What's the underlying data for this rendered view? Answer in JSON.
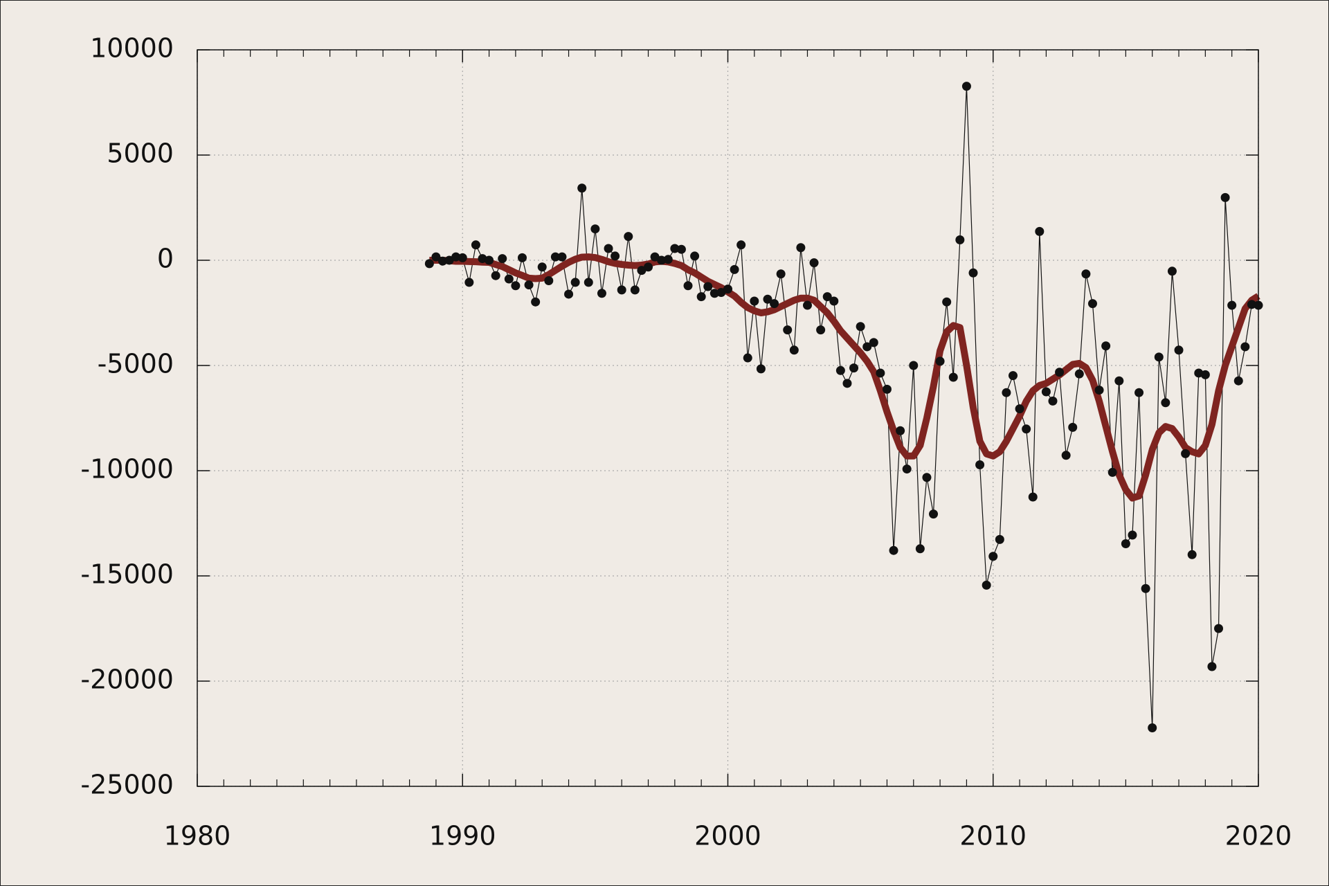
{
  "chart_data": {
    "type": "line",
    "x": [
      1988.75,
      1989,
      1989.25,
      1989.5,
      1989.75,
      1990,
      1990.25,
      1990.5,
      1990.75,
      1991,
      1991.25,
      1991.5,
      1991.75,
      1992,
      1992.25,
      1992.5,
      1992.75,
      1993,
      1993.25,
      1993.5,
      1993.75,
      1994,
      1994.25,
      1994.5,
      1994.75,
      1995,
      1995.25,
      1995.5,
      1995.75,
      1996,
      1996.25,
      1996.5,
      1996.75,
      1997,
      1997.25,
      1997.5,
      1997.75,
      1998,
      1998.25,
      1998.5,
      1998.75,
      1999,
      1999.25,
      1999.5,
      1999.75,
      2000,
      2000.25,
      2000.5,
      2000.75,
      2001,
      2001.25,
      2001.5,
      2001.75,
      2002,
      2002.25,
      2002.5,
      2002.75,
      2003,
      2003.25,
      2003.5,
      2003.75,
      2004,
      2004.25,
      2004.5,
      2004.75,
      2005,
      2005.25,
      2005.5,
      2005.75,
      2006,
      2006.25,
      2006.5,
      2006.75,
      2007,
      2007.25,
      2007.5,
      2007.75,
      2008,
      2008.25,
      2008.5,
      2008.75,
      2009,
      2009.25,
      2009.5,
      2009.75,
      2010,
      2010.25,
      2010.5,
      2010.75,
      2011,
      2011.25,
      2011.5,
      2011.75,
      2012,
      2012.25,
      2012.5,
      2012.75,
      2013,
      2013.25,
      2013.5,
      2013.75,
      2014,
      2014.25,
      2014.5,
      2014.75,
      2015,
      2015.25,
      2015.5,
      2015.75,
      2016,
      2016.25,
      2016.5,
      2016.75,
      2017,
      2017.25,
      2017.5,
      2017.75,
      2018,
      2018.25,
      2018.5,
      2018.75,
      2019,
      2019.25,
      2019.5,
      2019.75,
      2020
    ],
    "series": [
      {
        "color": "#111111",
        "line_width": 1.2,
        "markers": true,
        "values": [
          -160,
          160,
          -40,
          0,
          160,
          120,
          -1050,
          730,
          80,
          0,
          -730,
          80,
          -890,
          -1210,
          120,
          -1170,
          -1980,
          -320,
          -970,
          160,
          160,
          -1610,
          -1050,
          3430,
          -1050,
          1490,
          -1570,
          560,
          200,
          -1410,
          1130,
          -1410,
          -480,
          -320,
          160,
          0,
          40,
          560,
          520,
          -1210,
          200,
          -1730,
          -1250,
          -1570,
          -1530,
          -1370,
          -440,
          730,
          -4640,
          -1940,
          -5160,
          -1850,
          -2060,
          -650,
          -3310,
          -4270,
          600,
          -2140,
          -120,
          -3310,
          -1730,
          -1940,
          -5240,
          -5850,
          -5120,
          -3150,
          -4110,
          -3910,
          -5360,
          -6130,
          -13790,
          -8100,
          -9920,
          -5000,
          -13710,
          -10320,
          -12060,
          -4800,
          -1980,
          -5560,
          970,
          8270,
          -600,
          -9720,
          -15440,
          -14070,
          -13270,
          -6290,
          -5480,
          -7060,
          -8020,
          -11250,
          1370,
          -6250,
          -6690,
          -5320,
          -9270,
          -7940,
          -5400,
          -650,
          -2060,
          -6170,
          -4070,
          -10080,
          -5730,
          -13470,
          -13060,
          -6290,
          -15600,
          -22220,
          -4600,
          -6770,
          -520,
          -4270,
          -9190,
          -13990,
          -5360,
          -5440,
          -19310,
          -17500,
          2980,
          -2140,
          -5730,
          -4110,
          -2100,
          -2140
        ]
      },
      {
        "color": "#7f2420",
        "line_width": 10,
        "markers": false,
        "values": [
          0,
          0,
          0,
          -20,
          -50,
          -50,
          -60,
          -70,
          -90,
          -100,
          -200,
          -300,
          -450,
          -600,
          -720,
          -850,
          -870,
          -850,
          -680,
          -480,
          -280,
          -100,
          50,
          150,
          160,
          130,
          40,
          -70,
          -150,
          -200,
          -230,
          -250,
          -230,
          -180,
          -80,
          -50,
          -80,
          -150,
          -250,
          -450,
          -600,
          -800,
          -1000,
          -1150,
          -1300,
          -1500,
          -1700,
          -2000,
          -2250,
          -2400,
          -2500,
          -2450,
          -2350,
          -2200,
          -2050,
          -1900,
          -1800,
          -1800,
          -1900,
          -2200,
          -2500,
          -2900,
          -3350,
          -3700,
          -4050,
          -4400,
          -4800,
          -5300,
          -6200,
          -7200,
          -8100,
          -8900,
          -9300,
          -9300,
          -8800,
          -7500,
          -6000,
          -4300,
          -3400,
          -3100,
          -3200,
          -5000,
          -7000,
          -8600,
          -9200,
          -9300,
          -9100,
          -8600,
          -8000,
          -7400,
          -6700,
          -6200,
          -5950,
          -5850,
          -5650,
          -5450,
          -5200,
          -4950,
          -4900,
          -5100,
          -5700,
          -6700,
          -7900,
          -9100,
          -10200,
          -10900,
          -11300,
          -11200,
          -10200,
          -9000,
          -8200,
          -7900,
          -8000,
          -8400,
          -8900,
          -9100,
          -9200,
          -8800,
          -7800,
          -6200,
          -5000,
          -4100,
          -3200,
          -2300,
          -1900,
          -1700
        ]
      }
    ],
    "xlim": [
      1980,
      2020
    ],
    "xticks": [
      1980,
      1990,
      2000,
      2010,
      2020
    ],
    "xminorticks": [
      1981,
      1982,
      1983,
      1984,
      1985,
      1986,
      1987,
      1988,
      1989,
      1991,
      1992,
      1993,
      1994,
      1995,
      1996,
      1997,
      1998,
      1999,
      2001,
      2002,
      2003,
      2004,
      2005,
      2006,
      2007,
      2008,
      2009,
      2011,
      2012,
      2013,
      2014,
      2015,
      2016,
      2017,
      2018,
      2019
    ],
    "ylim": [
      -25000,
      10000
    ],
    "yticks": [
      -25000,
      -20000,
      -15000,
      -10000,
      -5000,
      0,
      5000,
      10000
    ],
    "grid": true
  }
}
